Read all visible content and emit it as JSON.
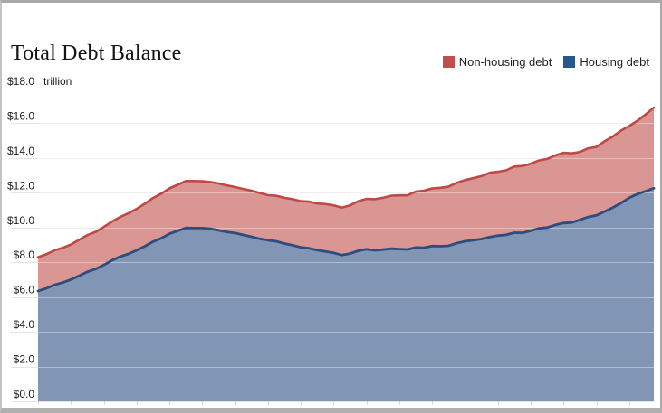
{
  "window": {
    "background": "#ffffff",
    "border_color": "#a9a9a9"
  },
  "title": "Total Debt Balance",
  "legend": {
    "position": "top-right",
    "items": [
      {
        "label": "Non-housing debt",
        "swatch_color": "#c0504d"
      },
      {
        "label": "Housing debt",
        "swatch_color": "#27578b"
      }
    ]
  },
  "chart_data": {
    "type": "area",
    "stacked": true,
    "title": "Total Debt Balance",
    "unit_label": "trillion",
    "ylim": [
      0,
      18
    ],
    "y_tick_interval": 2,
    "y_tick_labels": [
      "$18.0",
      "$16.0",
      "$14.0",
      "$12.0",
      "$10.0",
      "$8.0",
      "$6.0",
      "$4.0",
      "$2.0",
      "$0.0"
    ],
    "x_axis": {
      "tick_labels_visible": false,
      "points": 76,
      "tick_marks": "small unlabeled ticks along baseline at every 4th point"
    },
    "grid": true,
    "legend_position": "top-right",
    "series": [
      {
        "name": "Housing debt",
        "line_color": "#2c4d7e",
        "fill_color": "#8096b4",
        "values": [
          6.34,
          6.5,
          6.7,
          6.83,
          7.01,
          7.22,
          7.45,
          7.61,
          7.84,
          8.11,
          8.33,
          8.48,
          8.69,
          8.92,
          9.18,
          9.38,
          9.64,
          9.81,
          9.98,
          9.97,
          9.97,
          9.93,
          9.84,
          9.75,
          9.68,
          9.57,
          9.47,
          9.35,
          9.27,
          9.21,
          9.08,
          8.98,
          8.86,
          8.81,
          8.7,
          8.62,
          8.54,
          8.41,
          8.5,
          8.66,
          8.75,
          8.69,
          8.73,
          8.78,
          8.76,
          8.74,
          8.85,
          8.84,
          8.93,
          8.92,
          8.95,
          9.1,
          9.21,
          9.27,
          9.34,
          9.45,
          9.53,
          9.58,
          9.7,
          9.69,
          9.81,
          9.95,
          10.0,
          10.15,
          10.26,
          10.29,
          10.44,
          10.61,
          10.7,
          10.92,
          11.15,
          11.41,
          11.71,
          11.93,
          12.09,
          12.26
        ]
      },
      {
        "name": "Non-housing debt",
        "line_color": "#bf4946",
        "fill_color": "#d99693",
        "values": [
          1.95,
          1.96,
          1.99,
          2.0,
          2.01,
          2.07,
          2.11,
          2.14,
          2.19,
          2.23,
          2.28,
          2.34,
          2.38,
          2.45,
          2.52,
          2.57,
          2.61,
          2.65,
          2.7,
          2.71,
          2.69,
          2.69,
          2.7,
          2.68,
          2.65,
          2.65,
          2.65,
          2.64,
          2.59,
          2.62,
          2.63,
          2.65,
          2.66,
          2.68,
          2.69,
          2.73,
          2.74,
          2.74,
          2.78,
          2.86,
          2.9,
          2.94,
          2.98,
          3.05,
          3.09,
          3.11,
          3.22,
          3.28,
          3.32,
          3.37,
          3.4,
          3.48,
          3.52,
          3.57,
          3.62,
          3.7,
          3.68,
          3.71,
          3.81,
          3.85,
          3.86,
          3.91,
          3.95,
          4.0,
          4.04,
          3.98,
          3.91,
          3.95,
          3.94,
          4.04,
          4.09,
          4.17,
          4.13,
          4.22,
          4.42,
          4.64
        ]
      }
    ],
    "total_values": [
      8.29,
      8.46,
      8.69,
      8.83,
      9.02,
      9.29,
      9.56,
      9.75,
      10.03,
      10.34,
      10.61,
      10.82,
      11.07,
      11.37,
      11.7,
      11.95,
      12.25,
      12.46,
      12.68,
      12.68,
      12.66,
      12.62,
      12.54,
      12.43,
      12.33,
      12.22,
      12.12,
      11.99,
      11.86,
      11.83,
      11.71,
      11.63,
      11.52,
      11.49,
      11.39,
      11.35,
      11.28,
      11.15,
      11.28,
      11.52,
      11.65,
      11.63,
      11.71,
      11.83,
      11.85,
      11.85,
      12.07,
      12.12,
      12.25,
      12.29,
      12.35,
      12.58,
      12.73,
      12.84,
      12.96,
      13.15,
      13.21,
      13.29,
      13.51,
      13.54,
      13.67,
      13.86,
      13.95,
      14.15,
      14.3,
      14.27,
      14.35,
      14.56,
      14.64,
      14.96,
      15.24,
      15.58,
      15.84,
      16.15,
      16.51,
      16.9
    ]
  }
}
